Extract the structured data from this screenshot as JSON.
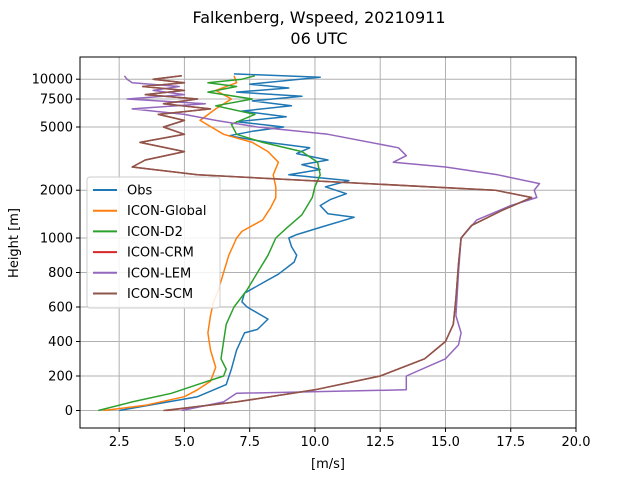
{
  "chart_data": {
    "type": "line",
    "title_line1": "Falkenberg, Wspeed, 20210911",
    "title_line2": "06 UTC",
    "xlabel": "[m/s]",
    "ylabel": "Height [m]",
    "xlim": [
      1,
      20
    ],
    "xticks": [
      2.5,
      5.0,
      7.5,
      10.0,
      12.5,
      15.0,
      17.5,
      20.0
    ],
    "xtick_labels": [
      "2.5",
      "5.0",
      "7.5",
      "10.0",
      "12.5",
      "15.0",
      "17.5",
      "20.0"
    ],
    "yticks": [
      0,
      200,
      400,
      600,
      800,
      1000,
      2000,
      5000,
      7500,
      10000
    ],
    "ytick_labels": [
      "0",
      "200",
      "400",
      "600",
      "800",
      "1000",
      "2000",
      "5000",
      "7500",
      "10000"
    ],
    "y_scale": "linear up to 1000 m, logarithmic above",
    "grid": true,
    "legend_position": "center-left",
    "series": [
      {
        "name": "Obs",
        "color": "#1f77b4",
        "points": [
          [
            2.5,
            0
          ],
          [
            4.0,
            40
          ],
          [
            5.5,
            80
          ],
          [
            6.6,
            150
          ],
          [
            6.8,
            240
          ],
          [
            7.0,
            350
          ],
          [
            7.3,
            450
          ],
          [
            7.8,
            470
          ],
          [
            8.2,
            530
          ],
          [
            7.4,
            600
          ],
          [
            7.2,
            630
          ],
          [
            7.3,
            680
          ],
          [
            8.0,
            740
          ],
          [
            8.6,
            790
          ],
          [
            9.2,
            860
          ],
          [
            9.3,
            900
          ],
          [
            9.1,
            950
          ],
          [
            9.0,
            1000
          ],
          [
            9.3,
            1050
          ],
          [
            10.3,
            1180
          ],
          [
            11.5,
            1350
          ],
          [
            10.5,
            1420
          ],
          [
            10.2,
            1600
          ],
          [
            10.6,
            1750
          ],
          [
            11.2,
            1900
          ],
          [
            10.4,
            2100
          ],
          [
            11.3,
            2300
          ],
          [
            9.0,
            2500
          ],
          [
            10.2,
            2700
          ],
          [
            9.5,
            2900
          ],
          [
            10.5,
            3100
          ],
          [
            9.3,
            3400
          ],
          [
            9.8,
            3700
          ],
          [
            8.2,
            4000
          ],
          [
            6.7,
            4400
          ],
          [
            7.6,
            4700
          ],
          [
            8.8,
            5000
          ],
          [
            7.0,
            5400
          ],
          [
            8.9,
            5800
          ],
          [
            7.2,
            6300
          ],
          [
            9.1,
            6800
          ],
          [
            7.6,
            7300
          ],
          [
            9.5,
            7800
          ],
          [
            7.0,
            8300
          ],
          [
            9.0,
            8800
          ],
          [
            7.5,
            9300
          ],
          [
            10.2,
            10300
          ],
          [
            6.9,
            10800
          ]
        ]
      },
      {
        "name": "ICON-Global",
        "color": "#ff7f0e",
        "points": [
          [
            1.9,
            0
          ],
          [
            3.5,
            30
          ],
          [
            5.0,
            80
          ],
          [
            5.5,
            120
          ],
          [
            6.0,
            170
          ],
          [
            6.2,
            250
          ],
          [
            6.0,
            350
          ],
          [
            5.9,
            450
          ],
          [
            6.0,
            550
          ],
          [
            6.1,
            620
          ],
          [
            6.3,
            700
          ],
          [
            6.5,
            800
          ],
          [
            6.7,
            900
          ],
          [
            7.0,
            1000
          ],
          [
            7.2,
            1100
          ],
          [
            8.0,
            1300
          ],
          [
            8.3,
            1550
          ],
          [
            8.5,
            1800
          ],
          [
            8.5,
            2100
          ],
          [
            8.4,
            2500
          ],
          [
            8.6,
            3000
          ],
          [
            8.2,
            3500
          ],
          [
            7.6,
            4000
          ],
          [
            6.5,
            4500
          ],
          [
            5.6,
            5500
          ],
          [
            6.2,
            6500
          ],
          [
            6.8,
            7500
          ],
          [
            6.2,
            8500
          ],
          [
            7.0,
            9500
          ],
          [
            6.9,
            10500
          ]
        ]
      },
      {
        "name": "ICON-D2",
        "color": "#2ca02c",
        "points": [
          [
            1.7,
            0
          ],
          [
            3.0,
            50
          ],
          [
            4.5,
            100
          ],
          [
            5.5,
            150
          ],
          [
            6.5,
            200
          ],
          [
            6.6,
            240
          ],
          [
            6.4,
            300
          ],
          [
            6.5,
            400
          ],
          [
            6.6,
            500
          ],
          [
            6.9,
            600
          ],
          [
            7.4,
            700
          ],
          [
            7.8,
            800
          ],
          [
            8.2,
            900
          ],
          [
            8.5,
            1000
          ],
          [
            8.9,
            1150
          ],
          [
            9.5,
            1400
          ],
          [
            9.9,
            1800
          ],
          [
            10.0,
            2100
          ],
          [
            10.2,
            2500
          ],
          [
            10.1,
            3000
          ],
          [
            9.5,
            3500
          ],
          [
            8.0,
            4000
          ],
          [
            7.0,
            4500
          ],
          [
            6.8,
            5200
          ],
          [
            7.7,
            6000
          ],
          [
            6.2,
            6800
          ],
          [
            7.6,
            7500
          ],
          [
            5.9,
            8300
          ],
          [
            7.0,
            9000
          ],
          [
            5.9,
            9500
          ],
          [
            7.2,
            10000
          ],
          [
            7.7,
            10500
          ]
        ]
      },
      {
        "name": "ICON-CRM",
        "color": "#d62728",
        "points": [
          [
            4.3,
            0
          ],
          [
            7.0,
            50
          ],
          [
            10.0,
            120
          ],
          [
            12.5,
            200
          ],
          [
            14.2,
            300
          ],
          [
            15.0,
            400
          ],
          [
            15.3,
            500
          ],
          [
            15.4,
            650
          ],
          [
            15.5,
            850
          ],
          [
            15.6,
            1000
          ],
          [
            16.0,
            1200
          ],
          [
            17.2,
            1500
          ],
          [
            18.3,
            1800
          ],
          [
            16.9,
            2000
          ],
          [
            12.0,
            2200
          ],
          [
            5.5,
            2500
          ],
          [
            3.0,
            2800
          ],
          [
            3.5,
            3100
          ],
          [
            5.0,
            3500
          ],
          [
            3.3,
            4000
          ],
          [
            5.0,
            4500
          ],
          [
            4.2,
            5000
          ],
          [
            5.0,
            5500
          ],
          [
            4.0,
            6000
          ],
          [
            6.0,
            6500
          ],
          [
            4.2,
            7000
          ],
          [
            5.5,
            7500
          ],
          [
            3.5,
            8000
          ],
          [
            5.0,
            8500
          ],
          [
            3.4,
            9000
          ],
          [
            5.0,
            9500
          ],
          [
            3.8,
            10000
          ],
          [
            4.9,
            10500
          ]
        ]
      },
      {
        "name": "ICON-LEM",
        "color": "#9467bd",
        "points": [
          [
            4.9,
            0
          ],
          [
            6.5,
            50
          ],
          [
            7.0,
            100
          ],
          [
            13.5,
            120
          ],
          [
            13.5,
            200
          ],
          [
            15.0,
            300
          ],
          [
            15.5,
            380
          ],
          [
            15.6,
            450
          ],
          [
            15.4,
            550
          ],
          [
            15.5,
            800
          ],
          [
            15.6,
            1000
          ],
          [
            16.2,
            1300
          ],
          [
            17.5,
            1600
          ],
          [
            18.5,
            1800
          ],
          [
            18.4,
            2000
          ],
          [
            18.6,
            2200
          ],
          [
            17.0,
            2500
          ],
          [
            15.0,
            2800
          ],
          [
            13.0,
            3000
          ],
          [
            13.5,
            3300
          ],
          [
            13.2,
            3700
          ],
          [
            10.5,
            4500
          ],
          [
            7.8,
            5000
          ],
          [
            6.2,
            5500
          ],
          [
            5.0,
            6000
          ],
          [
            3.0,
            6500
          ],
          [
            5.8,
            7000
          ],
          [
            2.8,
            7500
          ],
          [
            5.0,
            8000
          ],
          [
            3.8,
            8500
          ],
          [
            4.8,
            9000
          ],
          [
            3.0,
            9500
          ],
          [
            2.8,
            10000
          ],
          [
            2.7,
            10500
          ]
        ]
      },
      {
        "name": "ICON-SCM",
        "color": "#8c564b",
        "points": [
          [
            4.2,
            0
          ],
          [
            7.0,
            50
          ],
          [
            10.0,
            120
          ],
          [
            12.5,
            200
          ],
          [
            14.2,
            300
          ],
          [
            15.0,
            400
          ],
          [
            15.3,
            500
          ],
          [
            15.4,
            650
          ],
          [
            15.5,
            850
          ],
          [
            15.6,
            1000
          ],
          [
            16.0,
            1200
          ],
          [
            17.2,
            1500
          ],
          [
            18.3,
            1800
          ],
          [
            16.9,
            2000
          ],
          [
            12.0,
            2200
          ],
          [
            5.5,
            2500
          ],
          [
            3.0,
            2800
          ],
          [
            3.5,
            3100
          ],
          [
            5.0,
            3500
          ],
          [
            3.3,
            4000
          ],
          [
            5.0,
            4500
          ],
          [
            4.2,
            5000
          ],
          [
            5.0,
            5500
          ],
          [
            4.0,
            6000
          ],
          [
            6.0,
            6500
          ],
          [
            4.2,
            7000
          ],
          [
            5.5,
            7500
          ],
          [
            3.5,
            8000
          ],
          [
            5.0,
            8500
          ],
          [
            3.4,
            9000
          ],
          [
            5.0,
            9500
          ],
          [
            3.8,
            10000
          ],
          [
            4.9,
            10500
          ]
        ]
      }
    ]
  }
}
